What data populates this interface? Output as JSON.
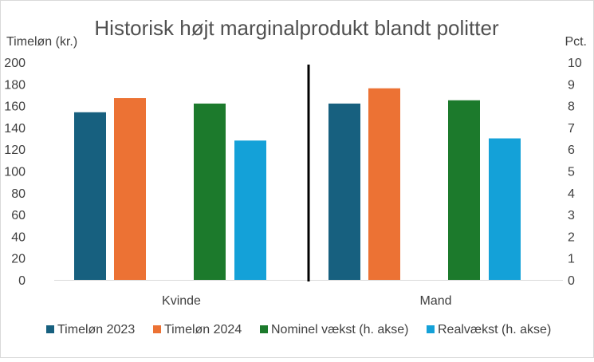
{
  "chart_data": {
    "type": "bar",
    "title": "Historisk højt marginalprodukt blandt politter",
    "categories": [
      "Kvinde",
      "Mand"
    ],
    "series": [
      {
        "name": "Timeløn 2023",
        "axis": "left",
        "color": "#17607f",
        "values": [
          154,
          162
        ]
      },
      {
        "name": "Timeløn 2024",
        "axis": "left",
        "color": "#ec7234",
        "values": [
          167,
          176
        ]
      },
      {
        "name": "Nominel vækst (h. akse)",
        "axis": "right",
        "color": "#1c7a2c",
        "values": [
          8.1,
          8.25
        ]
      },
      {
        "name": "Realvækst (h. akse)",
        "axis": "right",
        "color": "#14a1d8",
        "values": [
          6.4,
          6.5
        ]
      }
    ],
    "y_left": {
      "label": "Timeløn (kr.)",
      "min": 0,
      "max": 200,
      "step": 20,
      "ticks": [
        "0",
        "20",
        "40",
        "60",
        "80",
        "100",
        "120",
        "140",
        "160",
        "180",
        "200"
      ]
    },
    "y_right": {
      "label": "Pct.",
      "min": 0,
      "max": 10,
      "step": 1,
      "ticks": [
        "0",
        "1",
        "2",
        "3",
        "4",
        "5",
        "6",
        "7",
        "8",
        "9",
        "10"
      ]
    },
    "legend_position": "bottom",
    "grid": false,
    "divider": "between-categories"
  }
}
